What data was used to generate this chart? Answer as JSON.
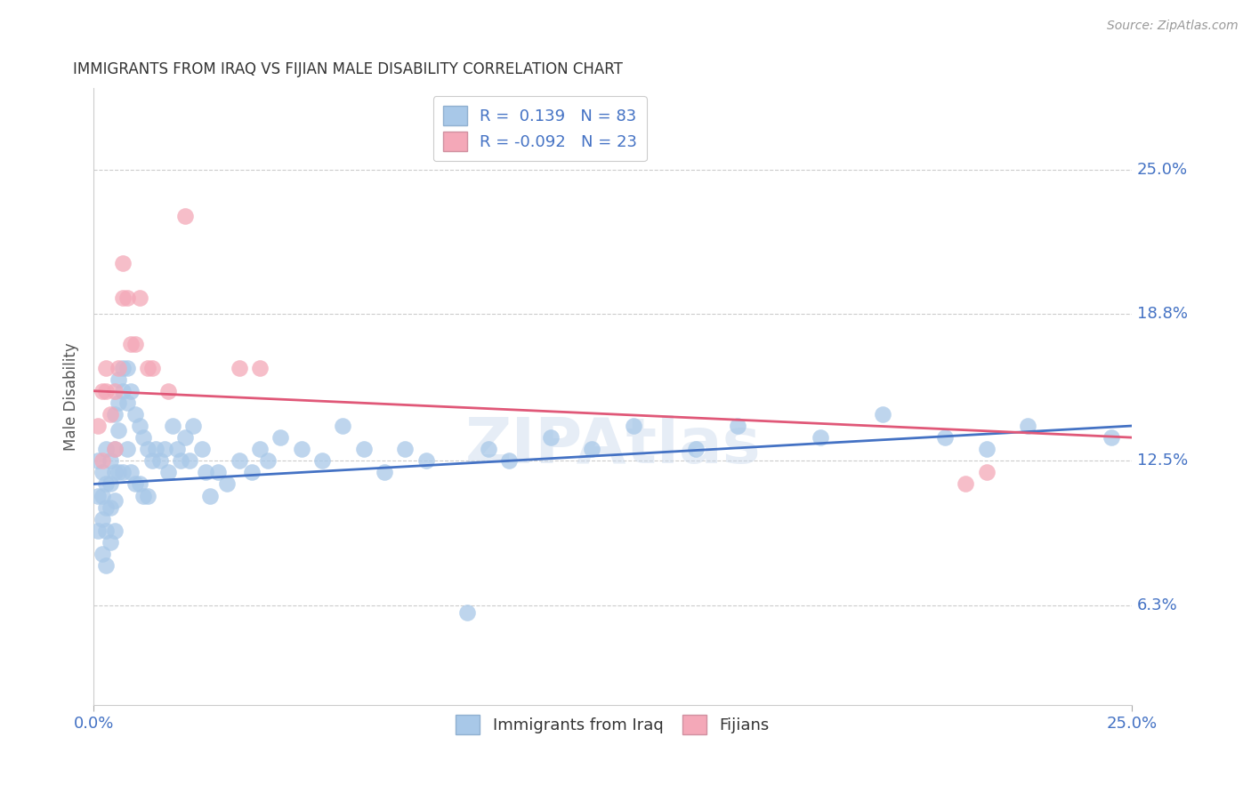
{
  "title": "IMMIGRANTS FROM IRAQ VS FIJIAN MALE DISABILITY CORRELATION CHART",
  "source": "Source: ZipAtlas.com",
  "ylabel": "Male Disability",
  "ytick_labels": [
    "6.3%",
    "12.5%",
    "18.8%",
    "25.0%"
  ],
  "ytick_values": [
    0.063,
    0.125,
    0.188,
    0.25
  ],
  "xmin": 0.0,
  "xmax": 0.25,
  "ymin": 0.02,
  "ymax": 0.285,
  "color_iraq": "#a8c8e8",
  "color_fijian": "#f4a8b8",
  "line_iraq": "#4472c4",
  "line_fijian": "#e05878",
  "background": "#ffffff",
  "iraq_line_y0": 0.115,
  "iraq_line_y1": 0.14,
  "fijian_line_y0": 0.155,
  "fijian_line_y1": 0.135,
  "iraq_x": [
    0.001,
    0.001,
    0.001,
    0.002,
    0.002,
    0.002,
    0.002,
    0.003,
    0.003,
    0.003,
    0.003,
    0.003,
    0.004,
    0.004,
    0.004,
    0.004,
    0.005,
    0.005,
    0.005,
    0.005,
    0.005,
    0.006,
    0.006,
    0.006,
    0.006,
    0.007,
    0.007,
    0.007,
    0.008,
    0.008,
    0.008,
    0.009,
    0.009,
    0.01,
    0.01,
    0.011,
    0.011,
    0.012,
    0.012,
    0.013,
    0.013,
    0.014,
    0.015,
    0.016,
    0.017,
    0.018,
    0.019,
    0.02,
    0.021,
    0.022,
    0.023,
    0.024,
    0.026,
    0.027,
    0.028,
    0.03,
    0.032,
    0.035,
    0.038,
    0.04,
    0.042,
    0.045,
    0.05,
    0.055,
    0.06,
    0.065,
    0.07,
    0.075,
    0.08,
    0.09,
    0.095,
    0.1,
    0.11,
    0.12,
    0.13,
    0.145,
    0.155,
    0.175,
    0.19,
    0.205,
    0.215,
    0.225,
    0.245
  ],
  "iraq_y": [
    0.125,
    0.11,
    0.095,
    0.12,
    0.11,
    0.1,
    0.085,
    0.13,
    0.115,
    0.105,
    0.095,
    0.08,
    0.125,
    0.115,
    0.105,
    0.09,
    0.145,
    0.13,
    0.12,
    0.108,
    0.095,
    0.16,
    0.15,
    0.138,
    0.12,
    0.165,
    0.155,
    0.12,
    0.165,
    0.15,
    0.13,
    0.155,
    0.12,
    0.145,
    0.115,
    0.14,
    0.115,
    0.135,
    0.11,
    0.13,
    0.11,
    0.125,
    0.13,
    0.125,
    0.13,
    0.12,
    0.14,
    0.13,
    0.125,
    0.135,
    0.125,
    0.14,
    0.13,
    0.12,
    0.11,
    0.12,
    0.115,
    0.125,
    0.12,
    0.13,
    0.125,
    0.135,
    0.13,
    0.125,
    0.14,
    0.13,
    0.12,
    0.13,
    0.125,
    0.06,
    0.13,
    0.125,
    0.135,
    0.13,
    0.14,
    0.13,
    0.14,
    0.135,
    0.145,
    0.135,
    0.13,
    0.14,
    0.135
  ],
  "fijian_x": [
    0.001,
    0.002,
    0.002,
    0.003,
    0.003,
    0.004,
    0.005,
    0.005,
    0.006,
    0.007,
    0.007,
    0.008,
    0.009,
    0.01,
    0.011,
    0.013,
    0.014,
    0.018,
    0.022,
    0.035,
    0.04,
    0.21,
    0.215
  ],
  "fijian_y": [
    0.14,
    0.155,
    0.125,
    0.165,
    0.155,
    0.145,
    0.155,
    0.13,
    0.165,
    0.195,
    0.21,
    0.195,
    0.175,
    0.175,
    0.195,
    0.165,
    0.165,
    0.155,
    0.23,
    0.165,
    0.165,
    0.115,
    0.12
  ]
}
